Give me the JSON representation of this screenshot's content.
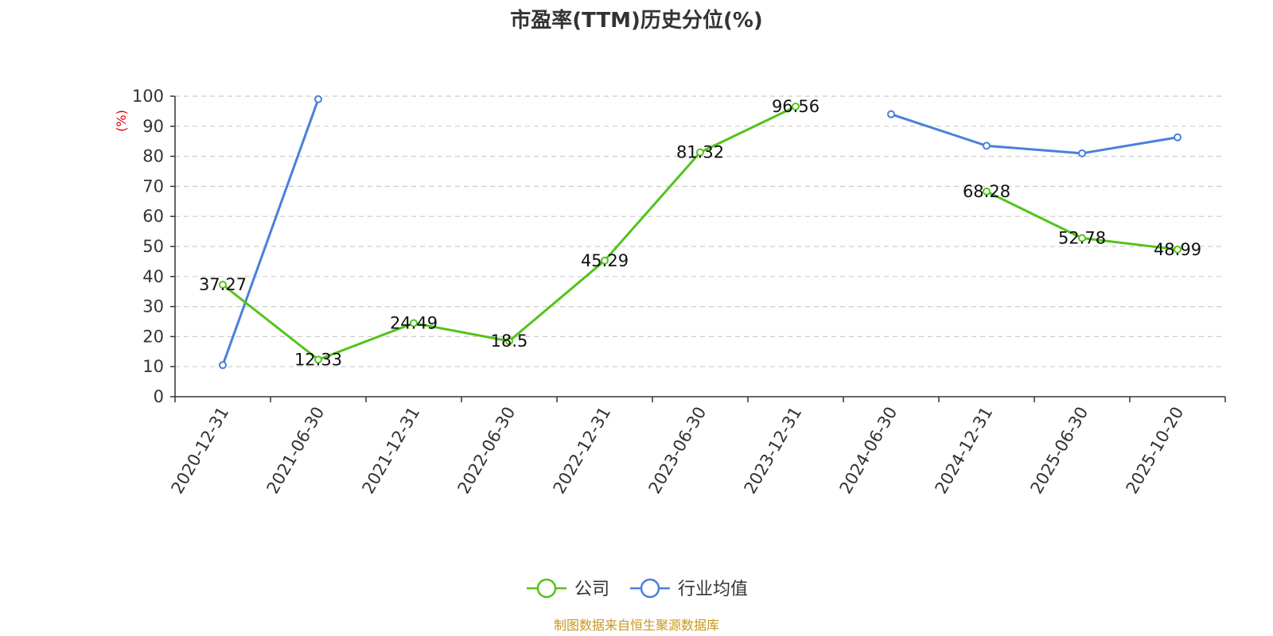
{
  "colors": {
    "company": "#52c41a",
    "industry": "#4a7fdc",
    "source": "#c8961e"
  },
  "chart_data": {
    "type": "line",
    "title": "市盈率(TTM)历史分位(%)",
    "ylabel": "(%)",
    "ylim": [
      0,
      100
    ],
    "yticks": [
      0,
      10,
      20,
      30,
      40,
      50,
      60,
      70,
      80,
      90,
      100
    ],
    "grid": true,
    "legend_position": "bottom",
    "categories": [
      "2020-12-31",
      "2021-06-30",
      "2021-12-31",
      "2022-06-30",
      "2022-12-31",
      "2023-06-30",
      "2023-12-31",
      "2024-06-30",
      "2024-12-31",
      "2025-06-30",
      "2025-10-20"
    ],
    "series": [
      {
        "name": "公司",
        "color": "#52c41a",
        "show_labels": true,
        "values": [
          37.27,
          12.33,
          24.49,
          18.5,
          45.29,
          81.32,
          96.56,
          null,
          68.28,
          52.78,
          48.99
        ]
      },
      {
        "name": "行业均值",
        "color": "#4a7fdc",
        "show_labels": false,
        "values": [
          10.5,
          99,
          null,
          null,
          null,
          null,
          null,
          94,
          83.5,
          81,
          86.3
        ]
      }
    ]
  },
  "source_text": "制图数据来自恒生聚源数据库"
}
